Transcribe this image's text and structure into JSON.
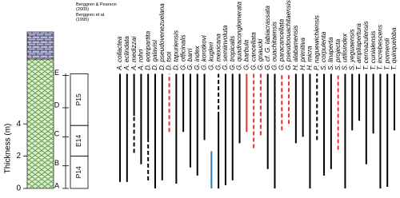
{
  "chart_data": {
    "type": "range",
    "ylabel": "Thickness (m)",
    "ylim": [
      0,
      9.7
    ],
    "yticks": [
      0,
      2,
      4
    ],
    "references": [
      "Berggren & Pearson (2005)",
      "Berggren et al. (1995)"
    ],
    "units": [
      {
        "label": "A",
        "at": 0
      },
      {
        "label": "B",
        "at": 1.4
      },
      {
        "label": "C",
        "at": 3.2
      },
      {
        "label": "D",
        "at": 5.0
      },
      {
        "label": "E",
        "at": 7.0
      }
    ],
    "zones": [
      {
        "label": "P14",
        "from": 0,
        "to": 2.0
      },
      {
        "label": "E14",
        "from": 2.0,
        "to": 3.9
      },
      {
        "label": "P15",
        "from": 3.9,
        "to": 7.1
      }
    ],
    "series": [
      {
        "name": "A. collactea",
        "color": "#000000",
        "ranges": [
          {
            "from": 0.4,
            "to": 7.1,
            "style": "solid"
          }
        ]
      },
      {
        "name": "A. eclindata",
        "color": "#000000",
        "ranges": [
          {
            "from": 0.4,
            "to": 7.1,
            "style": "solid"
          }
        ]
      },
      {
        "name": "A. medizzai",
        "color": "#000000",
        "ranges": [
          {
            "from": 2.2,
            "to": 4.5,
            "style": "dashed"
          },
          {
            "from": 4.5,
            "to": 7.1,
            "style": "solid"
          }
        ]
      },
      {
        "name": "A. rohri",
        "color": "#000000",
        "ranges": [
          {
            "from": 1.5,
            "to": 7.1,
            "style": "solid"
          }
        ]
      },
      {
        "name": "D. eotripartita",
        "color": "#000000",
        "ranges": [
          {
            "from": 0.5,
            "to": 3.0,
            "style": "dashed"
          },
          {
            "from": 3.0,
            "to": 7.1,
            "style": "solid"
          }
        ]
      },
      {
        "name": "D. galavisi",
        "color": "#000000",
        "ranges": [
          {
            "from": 0,
            "to": 7.1,
            "style": "solid"
          }
        ]
      },
      {
        "name": "D. pseudovenezuelana",
        "color": "#000000",
        "ranges": [
          {
            "from": 0.5,
            "to": 7.1,
            "style": "solid"
          }
        ]
      },
      {
        "name": "D. tsoi",
        "color": "#e8322f",
        "ranges": [
          {
            "from": 3.5,
            "to": 7.1,
            "style": "dashed"
          }
        ]
      },
      {
        "name": "D. tapuriensis",
        "color": "#000000",
        "ranges": [
          {
            "from": 0.3,
            "to": 7.1,
            "style": "solid"
          }
        ]
      },
      {
        "name": "G. officinalis",
        "color": "#000000",
        "ranges": [
          {
            "from": 3.5,
            "to": 7.1,
            "style": "solid"
          }
        ]
      },
      {
        "name": "G. barri",
        "color": "#000000",
        "ranges": [
          {
            "from": 1.3,
            "to": 7.1,
            "style": "solid"
          }
        ]
      },
      {
        "name": "G. index",
        "color": "#000000",
        "ranges": [
          {
            "from": 0.8,
            "to": 7.1,
            "style": "solid"
          }
        ]
      },
      {
        "name": "G. korotkovi",
        "color": "#000000",
        "ranges": [
          {
            "from": 3.0,
            "to": 7.1,
            "style": "solid"
          }
        ]
      },
      {
        "name": "G. kugleri",
        "color": "#2b7bb9",
        "ranges": [
          {
            "from": 0,
            "to": 2.3,
            "style": "solid"
          }
        ]
      },
      {
        "name": "G. mexicana",
        "color": "#000000",
        "ranges": [
          {
            "from": 0,
            "to": 4.5,
            "style": "solid"
          },
          {
            "from": 4.5,
            "to": 7.1,
            "style": "dashed"
          }
        ]
      },
      {
        "name": "G. semiinvoluta",
        "color": "#000000",
        "ranges": [
          {
            "from": 0.2,
            "to": 7.1,
            "style": "solid"
          }
        ]
      },
      {
        "name": "G. tropicalis",
        "color": "#000000",
        "ranges": [
          {
            "from": 0.5,
            "to": 7.1,
            "style": "solid"
          }
        ]
      },
      {
        "name": "G. quadraconglomerata",
        "color": "#000000",
        "ranges": [
          {
            "from": 2.8,
            "to": 7.1,
            "style": "solid"
          }
        ]
      },
      {
        "name": "G. barbula",
        "color": "#e8322f",
        "ranges": [
          {
            "from": 3.5,
            "to": 7.1,
            "style": "solid"
          }
        ]
      },
      {
        "name": "G. cancellata",
        "color": "#e8322f",
        "ranges": [
          {
            "from": 2.5,
            "to": 7.1,
            "style": "dashed"
          }
        ]
      },
      {
        "name": "G. gnaucki",
        "color": "#e8322f",
        "ranges": [
          {
            "from": 3.3,
            "to": 7.1,
            "style": "dashed"
          }
        ]
      },
      {
        "name": "G. cf. G. labiacrassata",
        "color": "#000000",
        "ranges": [
          {
            "from": 1.2,
            "to": 7.1,
            "style": "solid"
          }
        ]
      },
      {
        "name": "G. ouachitaensis",
        "color": "#000000",
        "ranges": [
          {
            "from": 0,
            "to": 7.1,
            "style": "solid"
          }
        ]
      },
      {
        "name": "G. paracancellata",
        "color": "#e8322f",
        "ranges": [
          {
            "from": 3.6,
            "to": 7.1,
            "style": "dashed"
          }
        ]
      },
      {
        "name": "G. pseudoouachitaensis",
        "color": "#e8322f",
        "ranges": [
          {
            "from": 4.0,
            "to": 7.1,
            "style": "dashed"
          }
        ]
      },
      {
        "name": "H. alabamensis",
        "color": "#000000",
        "ranges": [
          {
            "from": 2.8,
            "to": 7.1,
            "style": "solid"
          }
        ]
      },
      {
        "name": "H. primitiva",
        "color": "#000000",
        "ranges": [
          {
            "from": 3.2,
            "to": 7.1,
            "style": "solid"
          }
        ]
      },
      {
        "name": "H. micra",
        "color": "#000000",
        "ranges": [
          {
            "from": 0,
            "to": 7.1,
            "style": "solid"
          }
        ]
      },
      {
        "name": "P. naguewichiensis",
        "color": "#000000",
        "ranges": [
          {
            "from": 3.0,
            "to": 7.1,
            "style": "dashed"
          }
        ]
      },
      {
        "name": "S. corpulenta",
        "color": "#000000",
        "ranges": [
          {
            "from": 0.8,
            "to": 7.1,
            "style": "solid"
          }
        ]
      },
      {
        "name": "S. linaperta",
        "color": "#000000",
        "ranges": [
          {
            "from": 1.2,
            "to": 7.1,
            "style": "solid"
          }
        ]
      },
      {
        "name": "S. projecta",
        "color": "#e8322f",
        "ranges": [
          {
            "from": 2.4,
            "to": 7.1,
            "style": "dashed"
          }
        ]
      },
      {
        "name": "S. utilisindex",
        "color": "#000000",
        "ranges": [
          {
            "from": 0,
            "to": 7.1,
            "style": "solid"
          }
        ]
      },
      {
        "name": "S. yeguaensis",
        "color": "#000000",
        "ranges": [
          {
            "from": 3.6,
            "to": 7.1,
            "style": "solid"
          }
        ]
      },
      {
        "name": "T. ampliapertura",
        "color": "#000000",
        "ranges": [
          {
            "from": 4.2,
            "to": 7.1,
            "style": "solid"
          }
        ]
      },
      {
        "name": "T. cerroazulensis",
        "color": "#000000",
        "ranges": [
          {
            "from": 1.5,
            "to": 7.1,
            "style": "solid"
          }
        ]
      },
      {
        "name": "T. cunialensis",
        "color": "#000000",
        "ranges": [
          {
            "from": 3.4,
            "to": 7.1,
            "style": "solid"
          }
        ]
      },
      {
        "name": "T. increbescens",
        "color": "#000000",
        "ranges": [
          {
            "from": 0,
            "to": 7.1,
            "style": "solid"
          }
        ]
      },
      {
        "name": "T. pomeroli",
        "color": "#000000",
        "ranges": [
          {
            "from": 0.1,
            "to": 7.1,
            "style": "solid"
          }
        ]
      },
      {
        "name": "T. quinqueloba",
        "color": "#000000",
        "ranges": [
          {
            "from": 3.6,
            "to": 7.1,
            "style": "solid"
          }
        ]
      }
    ]
  }
}
